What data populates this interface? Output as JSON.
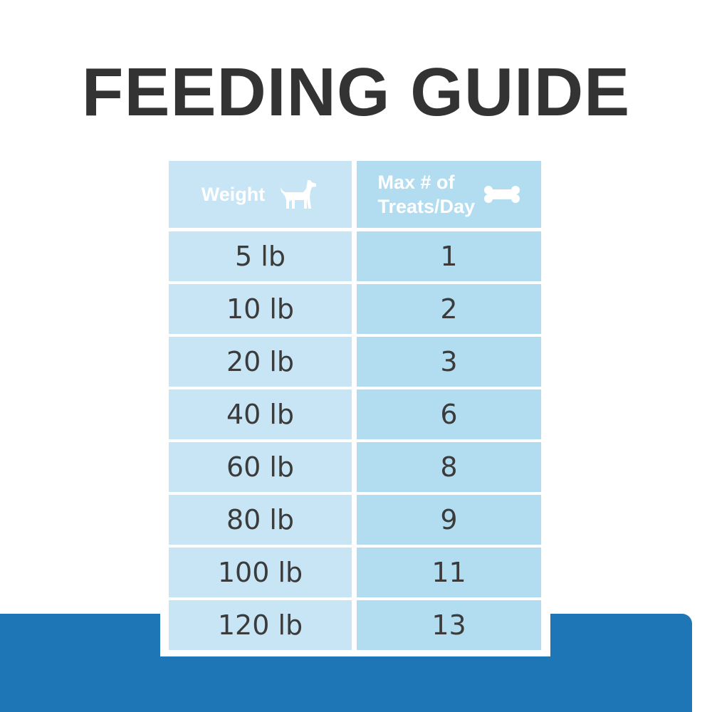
{
  "header": {
    "title": "FEEDING GUIDE"
  },
  "table": {
    "columns": [
      "Weight",
      "Max # of Treats/Day"
    ],
    "rows": [
      [
        "5 lb",
        "1"
      ],
      [
        "10 lb",
        "2"
      ],
      [
        "20 lb",
        "3"
      ],
      [
        "40 lb",
        "6"
      ],
      [
        "60 lb",
        "8"
      ],
      [
        "80 lb",
        "9"
      ],
      [
        "100 lb",
        "11"
      ],
      [
        "120 lb",
        "13"
      ]
    ]
  }
}
